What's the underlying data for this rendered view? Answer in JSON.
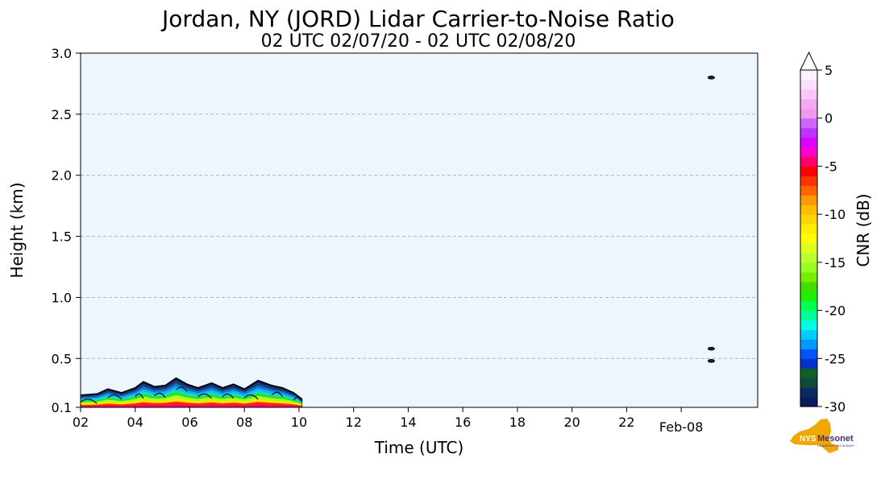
{
  "chart_data": {
    "type": "heatmap",
    "title": "Jordan, NY (JORD) Lidar Carrier-to-Noise Ratio",
    "subtitle": "02 UTC 02/07/20 - 02 UTC 02/08/20",
    "xlabel": "Time (UTC)",
    "ylabel": "Height (km)",
    "x_tick_labels": [
      "02",
      "04",
      "06",
      "08",
      "10",
      "12",
      "14",
      "16",
      "18",
      "20",
      "22",
      "Feb-08"
    ],
    "x_tick_hours": [
      2,
      4,
      6,
      8,
      10,
      12,
      14,
      16,
      18,
      20,
      22,
      24
    ],
    "xlim_hours": [
      2,
      26.8
    ],
    "y_ticks": [
      0.1,
      0.5,
      1.0,
      1.5,
      2.0,
      2.5,
      3.0
    ],
    "y_tick_labels": [
      "0.1",
      "0.5",
      "1.0",
      "1.5",
      "2.0",
      "2.5",
      "3.0"
    ],
    "ylim": [
      0.1,
      3.0
    ],
    "grid": "horizontal dashed",
    "background_color": "#eef6fd",
    "colorbar": {
      "label": "CNR (dB)",
      "ticks": [
        5,
        0,
        -5,
        -10,
        -15,
        -20,
        -25,
        -30
      ],
      "tick_labels": [
        "5",
        "0",
        "-5",
        "-10",
        "-15",
        "-20",
        "-25",
        "-30"
      ],
      "range": [
        -30,
        5
      ],
      "extend": "max",
      "colors_bottom_to_top": [
        "#0a1a5c",
        "#0b2a63",
        "#114a3b",
        "#0e5f2a",
        "#0033cc",
        "#0055ff",
        "#0099ff",
        "#00ccff",
        "#00ffe0",
        "#00ff99",
        "#00ff55",
        "#22ee00",
        "#44dd00",
        "#77ee00",
        "#99ff22",
        "#bbff33",
        "#ddff22",
        "#ffff00",
        "#ffee00",
        "#ffd700",
        "#ffbb00",
        "#ff9900",
        "#ff6600",
        "#ff3300",
        "#ff0000",
        "#ff0066",
        "#ff00cc",
        "#dd00ff",
        "#bb33ff",
        "#cc66ff",
        "#ee99ee",
        "#f2aaf2",
        "#f7c8f7",
        "#fbe0fb",
        "#fff0ff"
      ]
    },
    "cnr_region": {
      "description_hours": [
        2,
        10
      ],
      "top_profile_km": [
        [
          2.0,
          0.2
        ],
        [
          2.6,
          0.21
        ],
        [
          3.0,
          0.25
        ],
        [
          3.5,
          0.22
        ],
        [
          4.0,
          0.26
        ],
        [
          4.3,
          0.31
        ],
        [
          4.7,
          0.27
        ],
        [
          5.1,
          0.28
        ],
        [
          5.5,
          0.34
        ],
        [
          5.9,
          0.29
        ],
        [
          6.3,
          0.26
        ],
        [
          6.8,
          0.3
        ],
        [
          7.2,
          0.26
        ],
        [
          7.6,
          0.29
        ],
        [
          8.0,
          0.25
        ],
        [
          8.5,
          0.32
        ],
        [
          9.0,
          0.28
        ],
        [
          9.4,
          0.26
        ],
        [
          9.8,
          0.22
        ],
        [
          10.1,
          0.17
        ]
      ],
      "isolated_points": [
        [
          25.1,
          2.8
        ],
        [
          25.1,
          0.58
        ],
        [
          25.1,
          0.48
        ]
      ]
    }
  },
  "logo": {
    "text_main": "NYS",
    "text_brand": "Mesonet",
    "text_sub": "UNIVERSITY AT ALBANY"
  }
}
